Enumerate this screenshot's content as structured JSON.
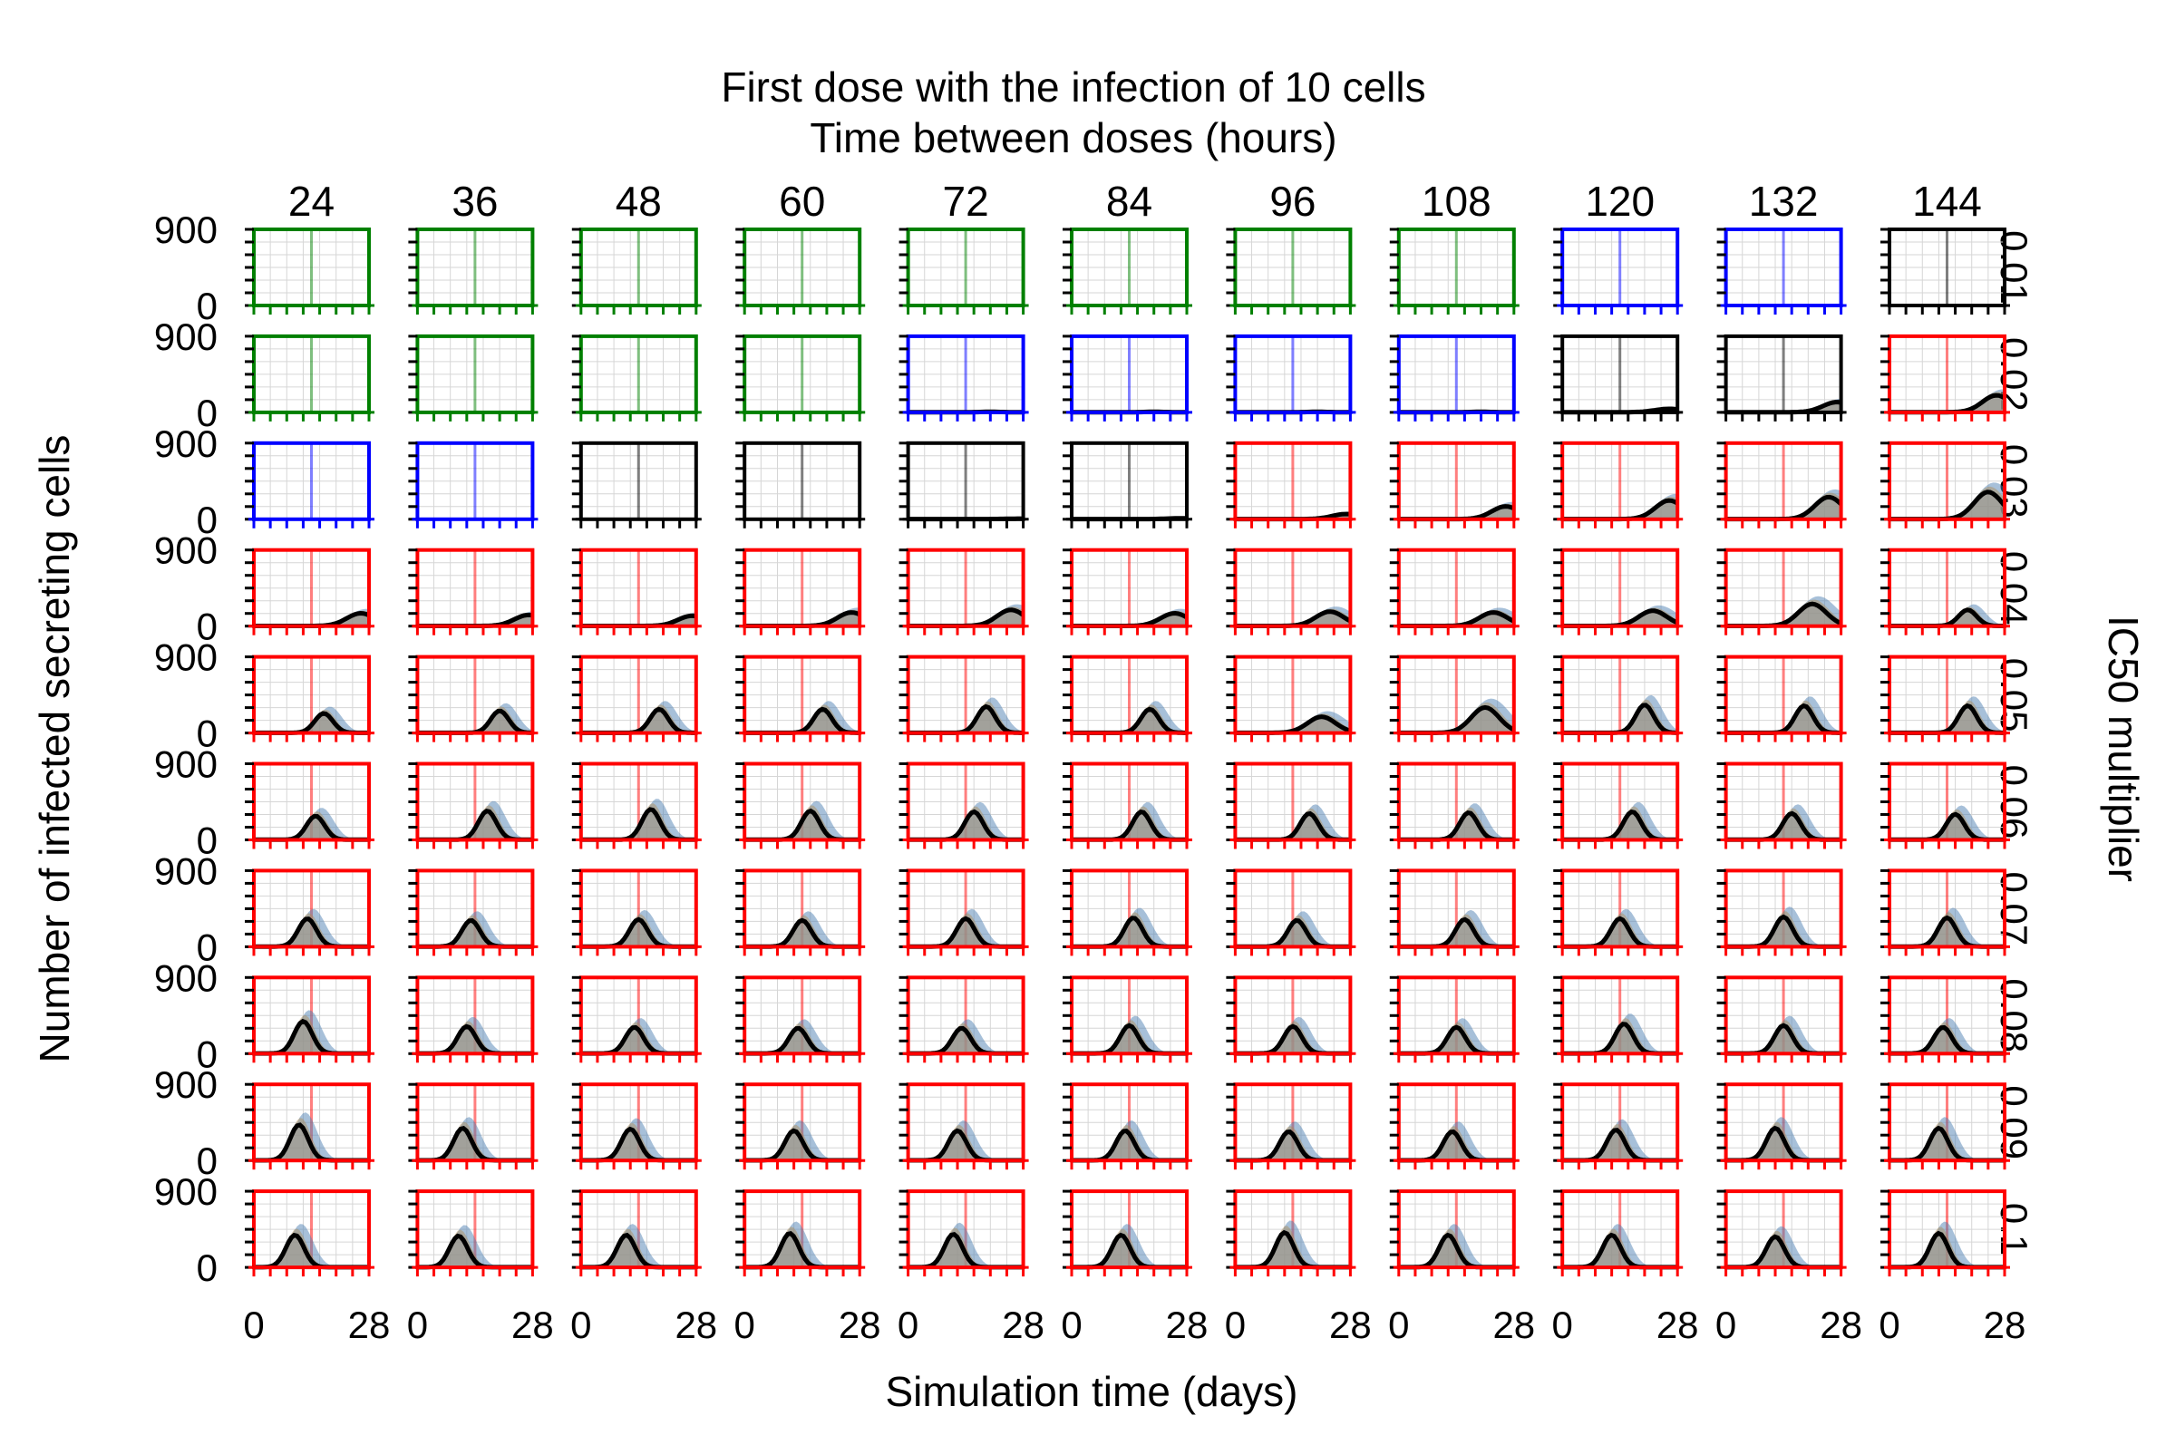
{
  "chart_data": {
    "type": "line",
    "title": "First dose with the infection of 10 cells",
    "subtitle": "Time between doses (hours)",
    "xlabel": "Simulation time (days)",
    "ylabel": "Number of infected secreting cells",
    "row_axis_label": "IC50 multiplier",
    "columns": [
      "24",
      "36",
      "48",
      "60",
      "72",
      "84",
      "96",
      "108",
      "120",
      "132",
      "144"
    ],
    "rows": [
      "0.01",
      "0.02",
      "0.03",
      "0.04",
      "0.05",
      "0.06",
      "0.07",
      "0.08",
      "0.09",
      "0.1"
    ],
    "xlim": [
      0,
      28
    ],
    "ylim": [
      0,
      900
    ],
    "xticks": [
      "0",
      "28"
    ],
    "yticks": [
      "0",
      "900"
    ],
    "dose_day": 14,
    "outcome_colors": {
      "green": "#008000",
      "blue": "#0000ff",
      "black": "#000000",
      "red": "#ff0000"
    },
    "band_colors": {
      "mean": "#000000",
      "band_blue": "#4f81b4",
      "band_tan": "#b08c55",
      "band_gray": "#999999"
    },
    "outcomes": [
      [
        "green",
        "green",
        "green",
        "green",
        "green",
        "green",
        "green",
        "green",
        "blue",
        "blue",
        "black"
      ],
      [
        "green",
        "green",
        "green",
        "green",
        "blue",
        "blue",
        "blue",
        "blue",
        "black",
        "black",
        "red"
      ],
      [
        "blue",
        "blue",
        "black",
        "black",
        "black",
        "black",
        "red",
        "red",
        "red",
        "red",
        "red"
      ],
      [
        "red",
        "red",
        "red",
        "red",
        "red",
        "red",
        "red",
        "red",
        "red",
        "red",
        "red"
      ],
      [
        "red",
        "red",
        "red",
        "red",
        "red",
        "red",
        "red",
        "red",
        "red",
        "red",
        "red"
      ],
      [
        "red",
        "red",
        "red",
        "red",
        "red",
        "red",
        "red",
        "red",
        "red",
        "red",
        "red"
      ],
      [
        "red",
        "red",
        "red",
        "red",
        "red",
        "red",
        "red",
        "red",
        "red",
        "red",
        "red"
      ],
      [
        "red",
        "red",
        "red",
        "red",
        "red",
        "red",
        "red",
        "red",
        "red",
        "red",
        "red"
      ],
      [
        "red",
        "red",
        "red",
        "red",
        "red",
        "red",
        "red",
        "red",
        "red",
        "red",
        "red"
      ],
      [
        "red",
        "red",
        "red",
        "red",
        "red",
        "red",
        "red",
        "red",
        "red",
        "red",
        "red"
      ]
    ],
    "series_shape": {
      "description": "approximate mean infected cells per panel: peak (cells) and peak day (days)",
      "peak": [
        [
          0,
          0,
          0,
          0,
          0,
          0,
          0,
          0,
          0,
          0,
          0
        ],
        [
          0,
          0,
          0,
          0,
          5,
          5,
          5,
          5,
          40,
          120,
          200
        ],
        [
          0,
          0,
          0,
          0,
          5,
          10,
          60,
          150,
          220,
          260,
          320
        ],
        [
          150,
          130,
          120,
          160,
          190,
          150,
          170,
          160,
          180,
          260,
          190
        ],
        [
          230,
          260,
          280,
          280,
          310,
          280,
          190,
          300,
          330,
          320,
          320
        ],
        [
          280,
          340,
          360,
          340,
          330,
          330,
          310,
          320,
          330,
          310,
          300
        ],
        [
          330,
          310,
          320,
          310,
          330,
          340,
          310,
          320,
          330,
          350,
          340
        ],
        [
          380,
          320,
          310,
          300,
          300,
          330,
          320,
          310,
          350,
          330,
          310
        ],
        [
          420,
          380,
          370,
          350,
          350,
          350,
          340,
          340,
          360,
          380,
          380
        ],
        [
          380,
          370,
          380,
          400,
          390,
          380,
          410,
          380,
          380,
          360,
          400
        ]
      ],
      "peak_day": [
        [
          0,
          0,
          0,
          0,
          0,
          0,
          0,
          0,
          0,
          0,
          0
        ],
        [
          0,
          0,
          0,
          0,
          20,
          20,
          20,
          20,
          26,
          27,
          26
        ],
        [
          0,
          0,
          0,
          0,
          27,
          27,
          27,
          26,
          26,
          25,
          24
        ],
        [
          26,
          27,
          27,
          26,
          25,
          25,
          23,
          23,
          22,
          21,
          19
        ],
        [
          17,
          20,
          19,
          19,
          19,
          19,
          21,
          21,
          20,
          19,
          19
        ],
        [
          15,
          17,
          17,
          16,
          16,
          17,
          18,
          17,
          17,
          16,
          16
        ],
        [
          13,
          13,
          14,
          14,
          14,
          15,
          15,
          16,
          14,
          14,
          14
        ],
        [
          12,
          12,
          13,
          13,
          13,
          14,
          14,
          14,
          15,
          14,
          13
        ],
        [
          11,
          11,
          12,
          12,
          12,
          13,
          13,
          13,
          13,
          12,
          12
        ],
        [
          10,
          10,
          11,
          11,
          11,
          12,
          12,
          12,
          12,
          12,
          12
        ]
      ]
    }
  }
}
